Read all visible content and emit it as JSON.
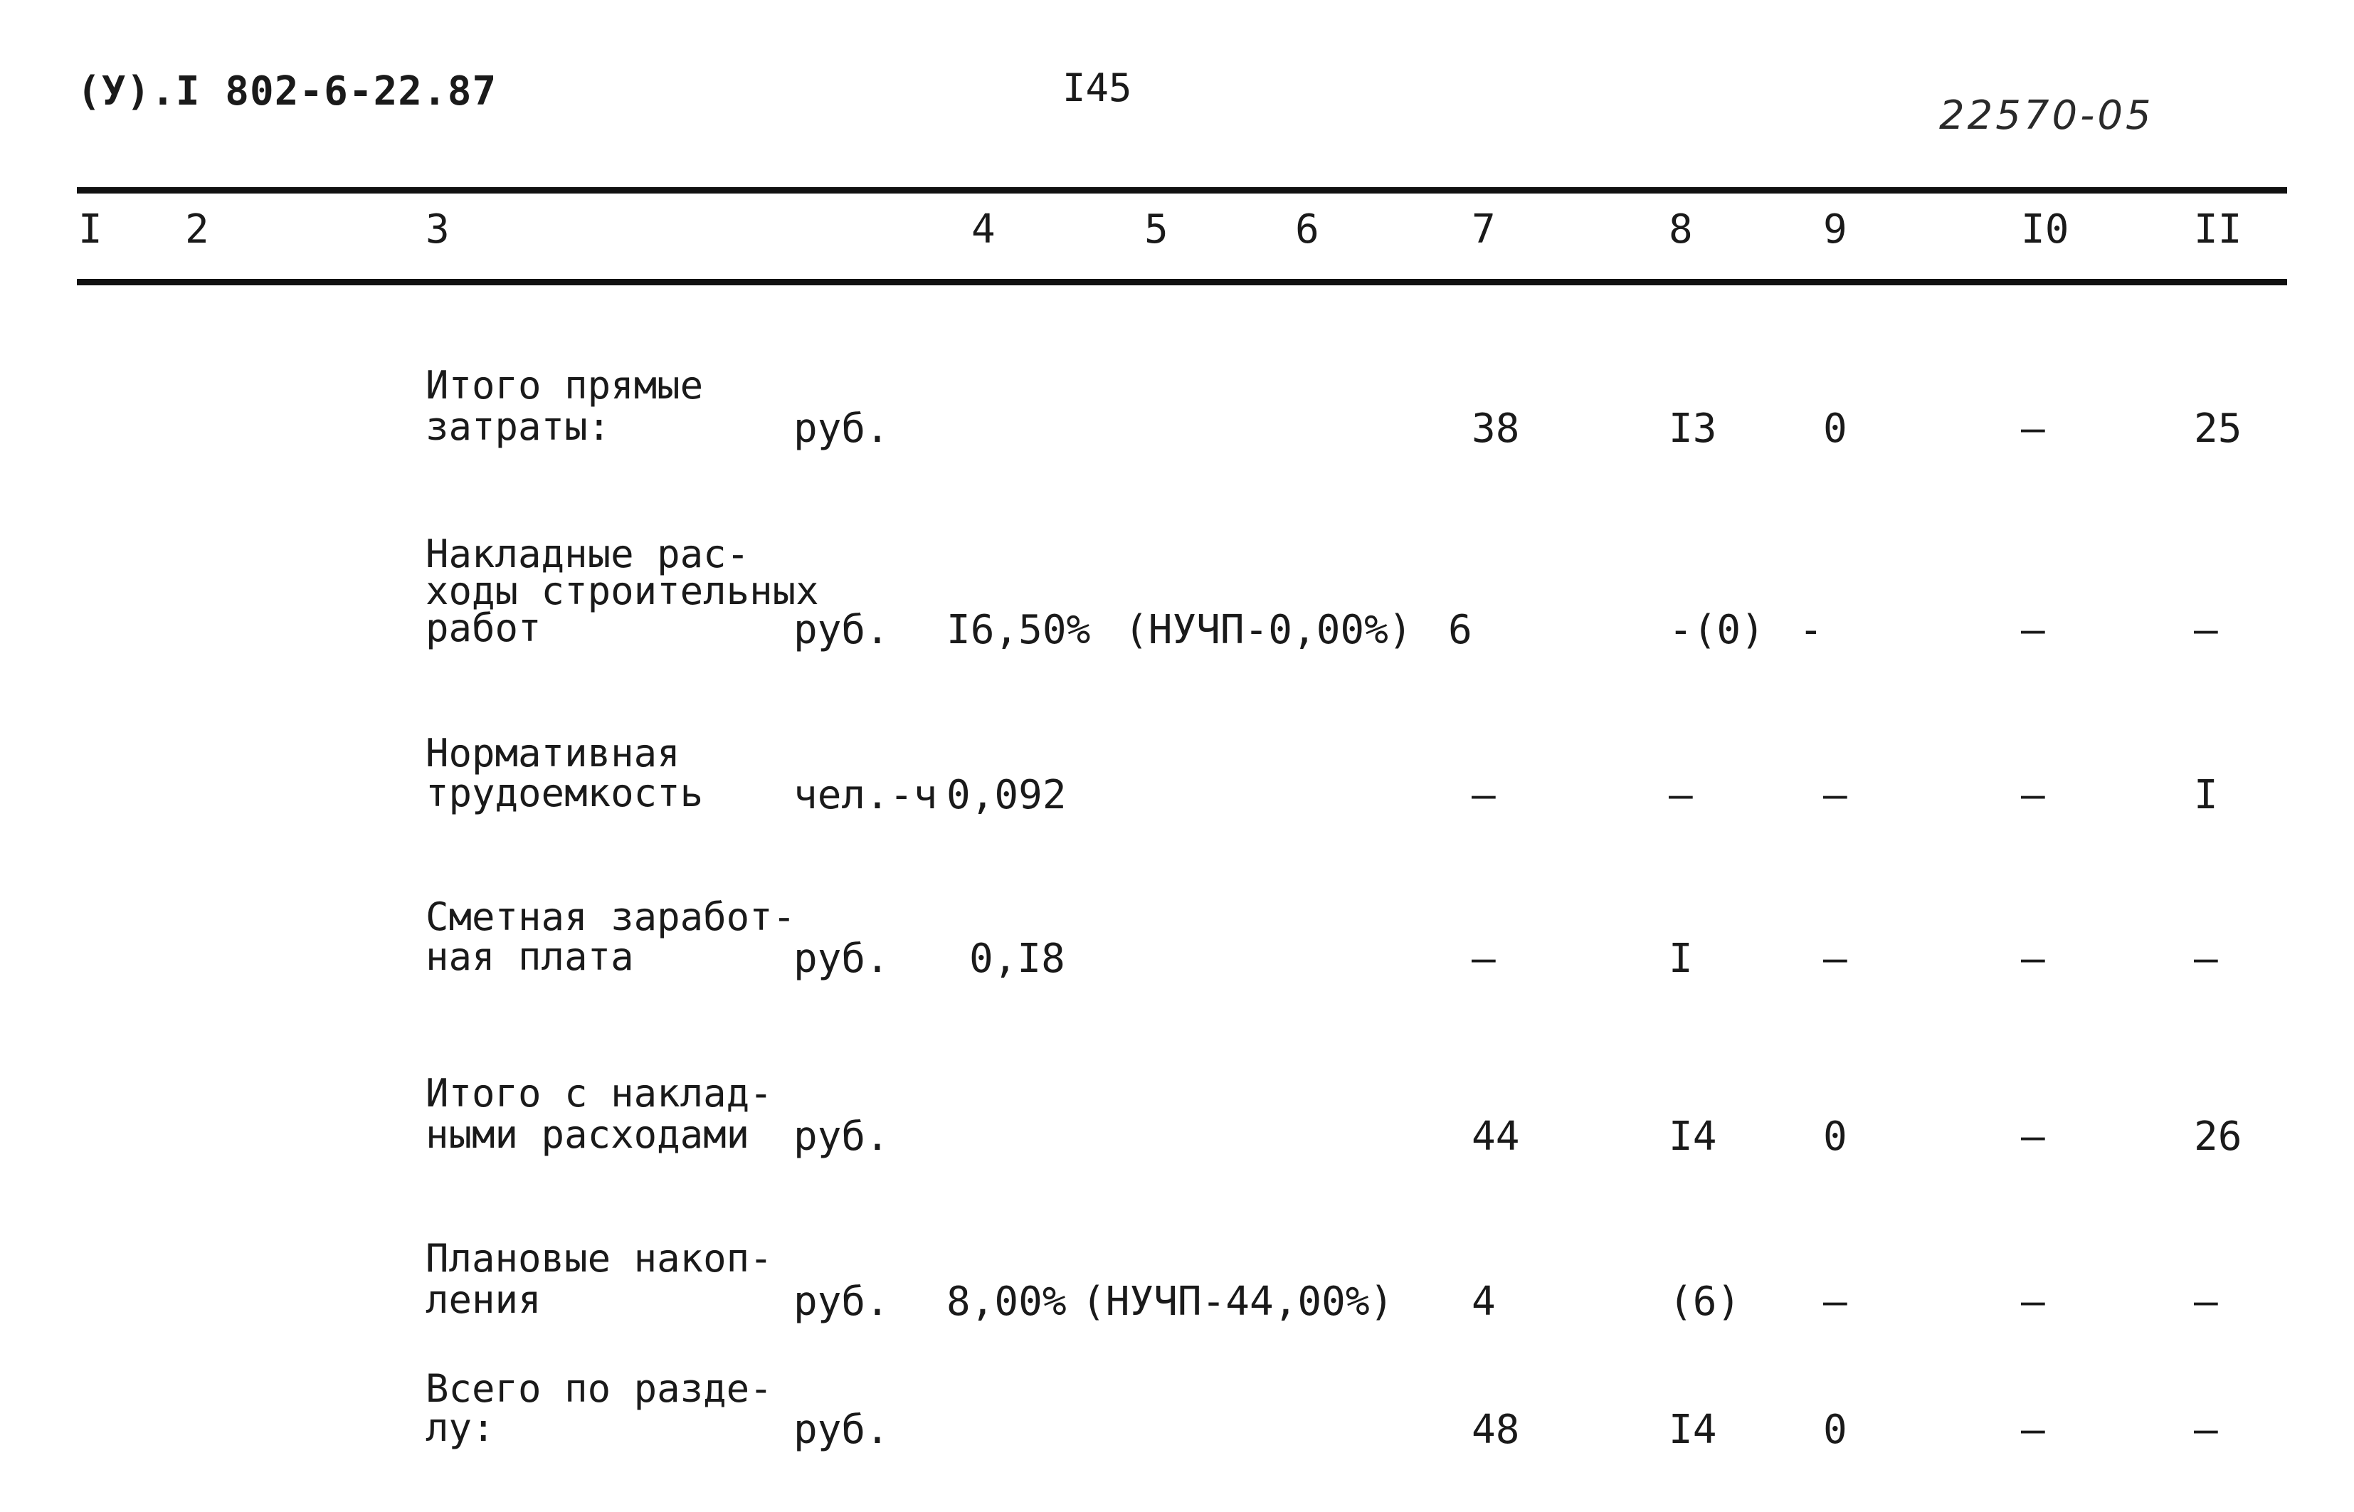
{
  "header": {
    "code_left": "(У).I   802-6-22.87",
    "page_number": "I45",
    "handwritten_number": "22570-05"
  },
  "columns": [
    "I",
    "2",
    "3",
    "4",
    "5",
    "6",
    "7",
    "8",
    "9",
    "I0",
    "II"
  ],
  "rows": [
    {
      "label_lines": [
        "Итого прямые",
        "затраты:"
      ],
      "unit": "руб.",
      "rate": "",
      "note": "",
      "c7": "38",
      "c8": "I3",
      "c9": "0",
      "c10": "–",
      "c11": "25"
    },
    {
      "label_lines": [
        "Накладные рас-",
        "ходы строительных",
        "работ"
      ],
      "unit": "руб.",
      "rate": "I6,50%",
      "note": "(НУЧП-0,00%)",
      "c7": "6",
      "c8": "-(0)",
      "c9": "-",
      "c10": "–",
      "c11": "–"
    },
    {
      "label_lines": [
        "Нормативная",
        "трудоемкость"
      ],
      "unit": "чел.-ч",
      "rate": "0,092",
      "note": "",
      "c7": "–",
      "c8": "–",
      "c9": "–",
      "c10": "–",
      "c11": "I"
    },
    {
      "label_lines": [
        "Сметная заработ-",
        "ная плата"
      ],
      "unit": "руб.",
      "rate": "0,I8",
      "note": "",
      "c7": "–",
      "c8": "I",
      "c9": "–",
      "c10": "–",
      "c11": "–"
    },
    {
      "label_lines": [
        "Итого с наклад-",
        "ными расходами"
      ],
      "unit": "руб.",
      "rate": "",
      "note": "",
      "c7": "44",
      "c8": "I4",
      "c9": "0",
      "c10": "–",
      "c11": "26"
    },
    {
      "label_lines": [
        "Плановые накоп-",
        "ления"
      ],
      "unit": "руб.",
      "rate": "8,00%",
      "note": "(НУЧП-44,00%)",
      "c7": "4",
      "c8": "(6)",
      "c9": "–",
      "c10": "–",
      "c11": "–"
    },
    {
      "label_lines": [
        "Всего по разде-",
        "лу:"
      ],
      "unit": "руб.",
      "rate": "",
      "note": "",
      "c7": "48",
      "c8": "I4",
      "c9": "0",
      "c10": "–",
      "c11": "–"
    }
  ]
}
